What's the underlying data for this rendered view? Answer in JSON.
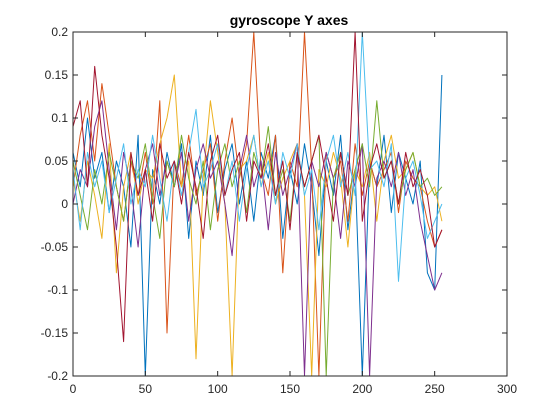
{
  "chart_data": {
    "type": "line",
    "title": "gyroscope Y axes",
    "xlabel": "",
    "ylabel": "",
    "xlim": [
      0,
      300
    ],
    "ylim": [
      -0.2,
      0.2
    ],
    "xticks": [
      0,
      50,
      100,
      150,
      200,
      250,
      300
    ],
    "yticks": [
      -0.2,
      -0.15,
      -0.1,
      -0.05,
      0,
      0.05,
      0.1,
      0.15,
      0.2
    ],
    "ytick_labels": [
      "-0.2",
      "-0.15",
      "-0.1",
      "-0.05",
      "0",
      "0.05",
      "0.1",
      "0.15",
      "0.2"
    ],
    "xtick_labels": [
      "0",
      "50",
      "100",
      "150",
      "200",
      "250",
      "300"
    ],
    "grid": false,
    "legend": "none",
    "series": [
      {
        "color": "#0072BD",
        "x": [
          0,
          5,
          10,
          15,
          20,
          25,
          30,
          35,
          40,
          45,
          50,
          55,
          60,
          65,
          70,
          75,
          80,
          85,
          90,
          95,
          100,
          105,
          110,
          115,
          120,
          125,
          130,
          135,
          140,
          145,
          150,
          155,
          160,
          165,
          170,
          175,
          180,
          185,
          190,
          195,
          200,
          205,
          210,
          215,
          220,
          225,
          230,
          235,
          240,
          245,
          250,
          255
        ],
        "y": [
          0.06,
          0.02,
          0.1,
          0.03,
          0.06,
          -0.01,
          0.05,
          0.02,
          -0.05,
          0.08,
          -0.2,
          0.04,
          0.0,
          0.06,
          0.02,
          0.07,
          -0.04,
          0.05,
          0.01,
          0.08,
          -0.01,
          0.04,
          0.07,
          0.0,
          0.05,
          -0.02,
          0.06,
          0.03,
          0.08,
          -0.04,
          0.04,
          0.0,
          0.07,
          0.02,
          -0.06,
          0.05,
          0.01,
          0.08,
          -0.03,
          0.04,
          -0.2,
          0.05,
          0.02,
          0.08,
          -0.01,
          0.06,
          0.03,
          0.0,
          0.05,
          -0.08,
          -0.1,
          0.15
        ]
      },
      {
        "color": "#D95319",
        "x": [
          0,
          5,
          10,
          15,
          20,
          25,
          30,
          35,
          40,
          45,
          50,
          55,
          60,
          65,
          70,
          75,
          80,
          85,
          90,
          95,
          100,
          105,
          110,
          115,
          120,
          125,
          130,
          135,
          140,
          145,
          150,
          155,
          160,
          165,
          170,
          175,
          180,
          185,
          190,
          195,
          200,
          205,
          210,
          215,
          220,
          225,
          230,
          235,
          240,
          245,
          250,
          255
        ],
        "y": [
          0.02,
          0.08,
          0.12,
          0.05,
          0.14,
          0.08,
          0.02,
          -0.02,
          0.05,
          0.01,
          0.06,
          0.0,
          0.12,
          -0.15,
          0.05,
          0.02,
          0.08,
          0.01,
          0.04,
          0.07,
          -0.02,
          0.05,
          0.1,
          0.03,
          0.07,
          0.2,
          0.04,
          0.01,
          0.08,
          -0.08,
          0.05,
          0.02,
          0.2,
          0.04,
          -0.2,
          0.06,
          0.03,
          0.05,
          -0.02,
          0.07,
          0.01,
          0.05,
          0.02,
          0.04,
          0.06,
          -0.01,
          0.05,
          0.03,
          0.02,
          -0.02,
          -0.05,
          -0.03
        ]
      },
      {
        "color": "#EDB120",
        "x": [
          0,
          5,
          10,
          15,
          20,
          25,
          30,
          35,
          40,
          45,
          50,
          55,
          60,
          65,
          70,
          75,
          80,
          85,
          90,
          95,
          100,
          105,
          110,
          115,
          120,
          125,
          130,
          135,
          140,
          145,
          150,
          155,
          160,
          165,
          170,
          175,
          180,
          185,
          190,
          195,
          200,
          205,
          210,
          215,
          220,
          225,
          230,
          235,
          240,
          245,
          250,
          255
        ],
        "y": [
          0.03,
          -0.02,
          0.05,
          0.01,
          -0.04,
          0.07,
          -0.08,
          0.02,
          0.06,
          0.0,
          0.04,
          0.03,
          0.07,
          0.1,
          0.15,
          0.02,
          0.05,
          -0.18,
          0.03,
          0.12,
          0.06,
          0.0,
          -0.2,
          0.04,
          0.05,
          0.08,
          0.02,
          0.06,
          0.0,
          0.03,
          0.05,
          0.07,
          0.01,
          -0.2,
          0.04,
          0.02,
          0.06,
          0.03,
          -0.05,
          0.04,
          0.02,
          0.06,
          -0.02,
          0.05,
          0.08,
          0.03,
          0.04,
          0.06,
          0.02,
          0.01,
          0.02,
          -0.02
        ]
      },
      {
        "color": "#7E2F8E",
        "x": [
          0,
          5,
          10,
          15,
          20,
          25,
          30,
          35,
          40,
          45,
          50,
          55,
          60,
          65,
          70,
          75,
          80,
          85,
          90,
          95,
          100,
          105,
          110,
          115,
          120,
          125,
          130,
          135,
          140,
          145,
          150,
          155,
          160,
          165,
          170,
          175,
          180,
          185,
          190,
          195,
          200,
          205,
          210,
          215,
          220,
          225,
          230,
          235,
          240,
          245,
          250,
          255
        ],
        "y": [
          0.0,
          0.04,
          0.02,
          0.09,
          0.12,
          0.04,
          -0.03,
          0.06,
          0.02,
          -0.05,
          0.04,
          0.07,
          0.01,
          0.05,
          0.02,
          0.06,
          -0.02,
          0.04,
          0.07,
          0.03,
          0.05,
          0.0,
          -0.06,
          0.04,
          0.08,
          0.02,
          0.05,
          -0.03,
          0.06,
          0.01,
          0.04,
          0.07,
          -0.2,
          0.05,
          0.02,
          0.06,
          0.03,
          -0.04,
          0.05,
          0.02,
          0.07,
          -0.2,
          0.03,
          0.05,
          0.02,
          0.06,
          0.01,
          0.04,
          -0.02,
          -0.06,
          -0.1,
          -0.08
        ]
      },
      {
        "color": "#77AC30",
        "x": [
          0,
          5,
          10,
          15,
          20,
          25,
          30,
          35,
          40,
          45,
          50,
          55,
          60,
          65,
          70,
          75,
          80,
          85,
          90,
          95,
          100,
          105,
          110,
          115,
          120,
          125,
          130,
          135,
          140,
          145,
          150,
          155,
          160,
          165,
          170,
          175,
          180,
          185,
          190,
          195,
          200,
          205,
          210,
          215,
          220,
          225,
          230,
          235,
          240,
          245,
          250,
          255
        ],
        "y": [
          0.05,
          0.01,
          -0.03,
          0.04,
          0.0,
          0.06,
          0.02,
          -0.02,
          0.05,
          0.03,
          0.07,
          0.01,
          -0.04,
          0.05,
          0.02,
          0.08,
          0.03,
          0.0,
          0.05,
          -0.03,
          0.04,
          0.07,
          0.02,
          0.05,
          -0.01,
          0.06,
          0.03,
          0.09,
          0.01,
          0.04,
          -0.02,
          0.06,
          0.02,
          0.05,
          0.08,
          -0.2,
          0.03,
          0.06,
          0.01,
          0.04,
          0.07,
          0.02,
          0.12,
          0.03,
          0.05,
          0.0,
          0.04,
          0.06,
          0.02,
          0.03,
          0.01,
          0.02
        ]
      },
      {
        "color": "#4DBEEE",
        "x": [
          0,
          5,
          10,
          15,
          20,
          25,
          30,
          35,
          40,
          45,
          50,
          55,
          60,
          65,
          70,
          75,
          80,
          85,
          90,
          95,
          100,
          105,
          110,
          115,
          120,
          125,
          130,
          135,
          140,
          145,
          150,
          155,
          160,
          165,
          170,
          175,
          180,
          185,
          190,
          195,
          200,
          205,
          210,
          215,
          220,
          225,
          230,
          235,
          240,
          245,
          250,
          255
        ],
        "y": [
          0.04,
          -0.03,
          0.06,
          0.02,
          0.05,
          -0.01,
          0.03,
          0.07,
          0.0,
          0.04,
          0.02,
          0.08,
          0.03,
          -0.02,
          0.05,
          0.01,
          0.06,
          0.11,
          0.02,
          0.04,
          0.07,
          0.01,
          0.05,
          -0.02,
          0.04,
          0.08,
          0.02,
          0.05,
          0.0,
          0.06,
          0.03,
          0.07,
          0.01,
          0.04,
          -0.03,
          0.05,
          0.08,
          0.02,
          0.06,
          0.01,
          0.2,
          0.04,
          0.05,
          0.02,
          0.07,
          -0.09,
          0.03,
          0.05,
          0.01,
          -0.04,
          -0.02,
          0.0
        ]
      },
      {
        "color": "#A2142F",
        "x": [
          0,
          5,
          10,
          15,
          20,
          25,
          30,
          35,
          40,
          45,
          50,
          55,
          60,
          65,
          70,
          75,
          80,
          85,
          90,
          95,
          100,
          105,
          110,
          115,
          120,
          125,
          130,
          135,
          140,
          145,
          150,
          155,
          160,
          165,
          170,
          175,
          180,
          185,
          190,
          195,
          200,
          205,
          210,
          215,
          220,
          225,
          230,
          235,
          240,
          245,
          250,
          255
        ],
        "y": [
          0.09,
          0.12,
          0.02,
          0.16,
          0.08,
          0.03,
          -0.05,
          -0.16,
          0.06,
          0.01,
          0.04,
          -0.02,
          0.07,
          0.03,
          0.05,
          0.0,
          0.06,
          0.02,
          -0.04,
          0.05,
          0.08,
          0.01,
          0.04,
          0.06,
          -0.02,
          0.05,
          0.03,
          0.07,
          0.01,
          0.05,
          -0.03,
          0.06,
          0.02,
          0.05,
          0.08,
          0.03,
          -0.02,
          0.06,
          0.01,
          0.2,
          -0.02,
          0.04,
          0.07,
          0.03,
          0.05,
          0.0,
          0.06,
          0.02,
          0.04,
          0.01,
          -0.05,
          -0.03
        ]
      }
    ]
  }
}
